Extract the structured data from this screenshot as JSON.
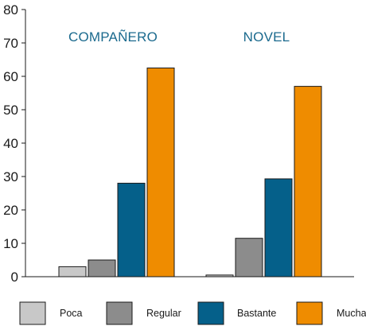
{
  "chart_data": {
    "type": "bar",
    "groups": [
      "COMPAÑERO",
      "NOVEL"
    ],
    "series": [
      {
        "name": "Poca",
        "color": "#c8c8c8",
        "values": [
          3,
          0.5
        ]
      },
      {
        "name": "Regular",
        "color": "#8c8c8c",
        "values": [
          5,
          11.5
        ]
      },
      {
        "name": "Bastante",
        "color": "#05608a",
        "values": [
          28,
          29.3
        ]
      },
      {
        "name": "Mucha",
        "color": "#ef8c00",
        "values": [
          62.5,
          57
        ]
      }
    ],
    "ylim": [
      0,
      80
    ],
    "yticks": [
      "0",
      "10",
      "20",
      "30",
      "40",
      "50",
      "60",
      "70",
      "80"
    ],
    "grid": false,
    "legend_position": "bottom"
  }
}
